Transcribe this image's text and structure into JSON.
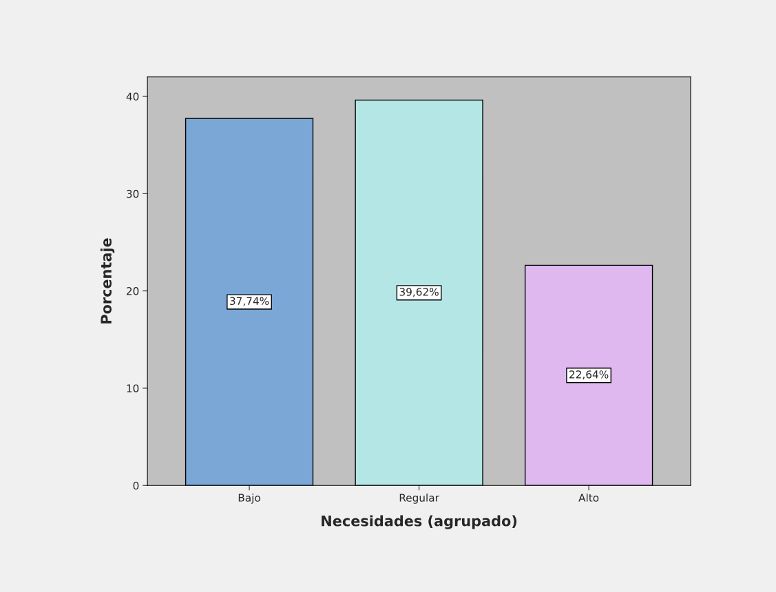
{
  "chart_data": {
    "type": "bar",
    "xlabel": "Necesidades (agrupado)",
    "ylabel": "Porcentaje",
    "categories": [
      "Bajo",
      "Regular",
      "Alto"
    ],
    "values": [
      37.74,
      39.62,
      22.64
    ],
    "colors": [
      "#7aa7d6",
      "#b4e6e6",
      "#dfb8f0"
    ],
    "value_labels": [
      "37,74%",
      "39,62%",
      "22,64%"
    ],
    "ylim": [
      0,
      42
    ],
    "yticks": [
      0,
      10,
      20,
      30,
      40
    ],
    "grid": false,
    "legend": false
  }
}
